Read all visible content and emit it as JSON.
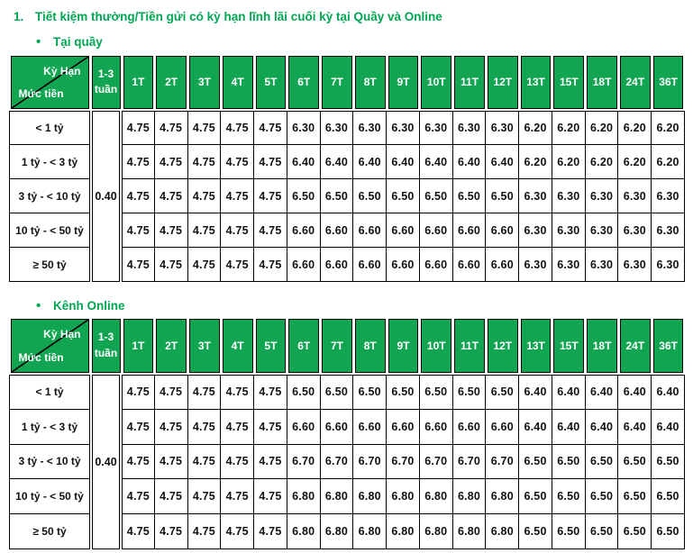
{
  "page": {
    "title_number": "1.",
    "title": "Tiết kiệm thường/Tiền gửi có kỳ hạn lĩnh lãi cuối kỳ tại Quầy và Online"
  },
  "colors": {
    "green": "#12a551",
    "title_green": "#00a651",
    "border": "#000000",
    "header_text": "#ffffff",
    "cell_text": "#111111",
    "background": "#ffffff"
  },
  "table_header": {
    "corner_top_right": "Kỳ Hạn",
    "corner_bottom_left": "Mức tiền",
    "week_col_line1": "1-3",
    "week_col_line2": "tuần",
    "terms": [
      "1T",
      "2T",
      "3T",
      "4T",
      "5T",
      "6T",
      "7T",
      "8T",
      "9T",
      "10T",
      "11T",
      "12T",
      "13T",
      "15T",
      "18T",
      "24T",
      "36T"
    ]
  },
  "tables": [
    {
      "bullet": "•",
      "section_label": "Tại quầy",
      "week_value": "0.40",
      "rows": [
        {
          "label": "< 1 tỷ",
          "values": [
            "4.75",
            "4.75",
            "4.75",
            "4.75",
            "4.75",
            "6.30",
            "6.30",
            "6.30",
            "6.30",
            "6.30",
            "6.30",
            "6.30",
            "6.20",
            "6.20",
            "6.20",
            "6.20",
            "6.20"
          ]
        },
        {
          "label": "1 tỷ - < 3 tỷ",
          "values": [
            "4.75",
            "4.75",
            "4.75",
            "4.75",
            "4.75",
            "6.40",
            "6.40",
            "6.40",
            "6.40",
            "6.40",
            "6.40",
            "6.40",
            "6.20",
            "6.20",
            "6.20",
            "6.20",
            "6.20"
          ]
        },
        {
          "label": "3 tỷ - < 10 tỷ",
          "values": [
            "4.75",
            "4.75",
            "4.75",
            "4.75",
            "4.75",
            "6.50",
            "6.50",
            "6.50",
            "6.50",
            "6.50",
            "6.50",
            "6.50",
            "6.30",
            "6.30",
            "6.30",
            "6.30",
            "6.30"
          ]
        },
        {
          "label": "10 tỷ - < 50 tỷ",
          "values": [
            "4.75",
            "4.75",
            "4.75",
            "4.75",
            "4.75",
            "6.60",
            "6.60",
            "6.60",
            "6.60",
            "6.60",
            "6.60",
            "6.60",
            "6.30",
            "6.30",
            "6.30",
            "6.30",
            "6.30"
          ]
        },
        {
          "label": "≥ 50 tỷ",
          "values": [
            "4.75",
            "4.75",
            "4.75",
            "4.75",
            "4.75",
            "6.60",
            "6.60",
            "6.60",
            "6.60",
            "6.60",
            "6.60",
            "6.60",
            "6.30",
            "6.30",
            "6.30",
            "6.30",
            "6.30"
          ]
        }
      ]
    },
    {
      "bullet": "•",
      "section_label": "Kênh Online",
      "week_value": "0.40",
      "rows": [
        {
          "label": "< 1 tỷ",
          "values": [
            "4.75",
            "4.75",
            "4.75",
            "4.75",
            "4.75",
            "6.50",
            "6.50",
            "6.50",
            "6.50",
            "6.50",
            "6.50",
            "6.50",
            "6.40",
            "6.40",
            "6.40",
            "6.40",
            "6.40"
          ]
        },
        {
          "label": "1 tỷ - < 3 tỷ",
          "values": [
            "4.75",
            "4.75",
            "4.75",
            "4.75",
            "4.75",
            "6.60",
            "6.60",
            "6.60",
            "6.60",
            "6.60",
            "6.60",
            "6.60",
            "6.40",
            "6.40",
            "6.40",
            "6.40",
            "6.40"
          ]
        },
        {
          "label": "3 tỷ - < 10 tỷ",
          "values": [
            "4.75",
            "4.75",
            "4.75",
            "4.75",
            "4.75",
            "6.70",
            "6.70",
            "6.70",
            "6.70",
            "6.70",
            "6.70",
            "6.70",
            "6.50",
            "6.50",
            "6.50",
            "6.50",
            "6.50"
          ]
        },
        {
          "label": "10 tỷ - < 50 tỷ",
          "values": [
            "4.75",
            "4.75",
            "4.75",
            "4.75",
            "4.75",
            "6.80",
            "6.80",
            "6.80",
            "6.80",
            "6.80",
            "6.80",
            "6.80",
            "6.50",
            "6.50",
            "6.50",
            "6.50",
            "6.50"
          ]
        },
        {
          "label": "≥ 50 tỷ",
          "values": [
            "4.75",
            "4.75",
            "4.75",
            "4.75",
            "4.75",
            "6.80",
            "6.80",
            "6.80",
            "6.80",
            "6.80",
            "6.80",
            "6.80",
            "6.50",
            "6.50",
            "6.50",
            "6.50",
            "6.50"
          ]
        }
      ]
    }
  ]
}
